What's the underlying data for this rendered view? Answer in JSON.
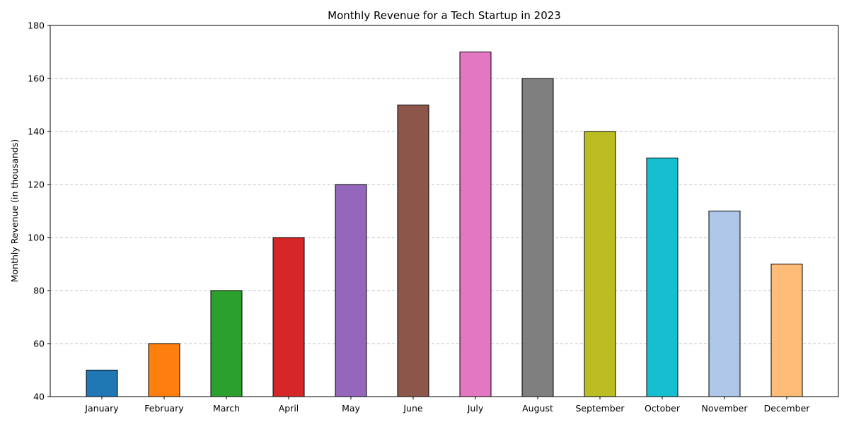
{
  "chart_data": {
    "type": "bar",
    "title": "Monthly Revenue for a Tech Startup in 2023",
    "xlabel": "",
    "ylabel": "Monthly Revenue (in thousands)",
    "categories": [
      "January",
      "February",
      "March",
      "April",
      "May",
      "June",
      "July",
      "August",
      "September",
      "October",
      "November",
      "December"
    ],
    "values": [
      50,
      60,
      80,
      100,
      120,
      150,
      170,
      160,
      140,
      130,
      110,
      90
    ],
    "colors": [
      "#1f77b4",
      "#ff7f0e",
      "#2ca02c",
      "#d62728",
      "#9467bd",
      "#8c564b",
      "#e377c2",
      "#7f7f7f",
      "#bcbd22",
      "#17becf",
      "#aec7e8",
      "#ffbb78"
    ],
    "bar_edge_color": "#000000",
    "ylim": [
      40,
      180
    ],
    "yticks": [
      "40",
      "60",
      "80",
      "100",
      "120",
      "140",
      "160",
      "180"
    ],
    "grid": "y-axis dashed",
    "grid_color": "#c0c0c0",
    "legend": "none"
  }
}
